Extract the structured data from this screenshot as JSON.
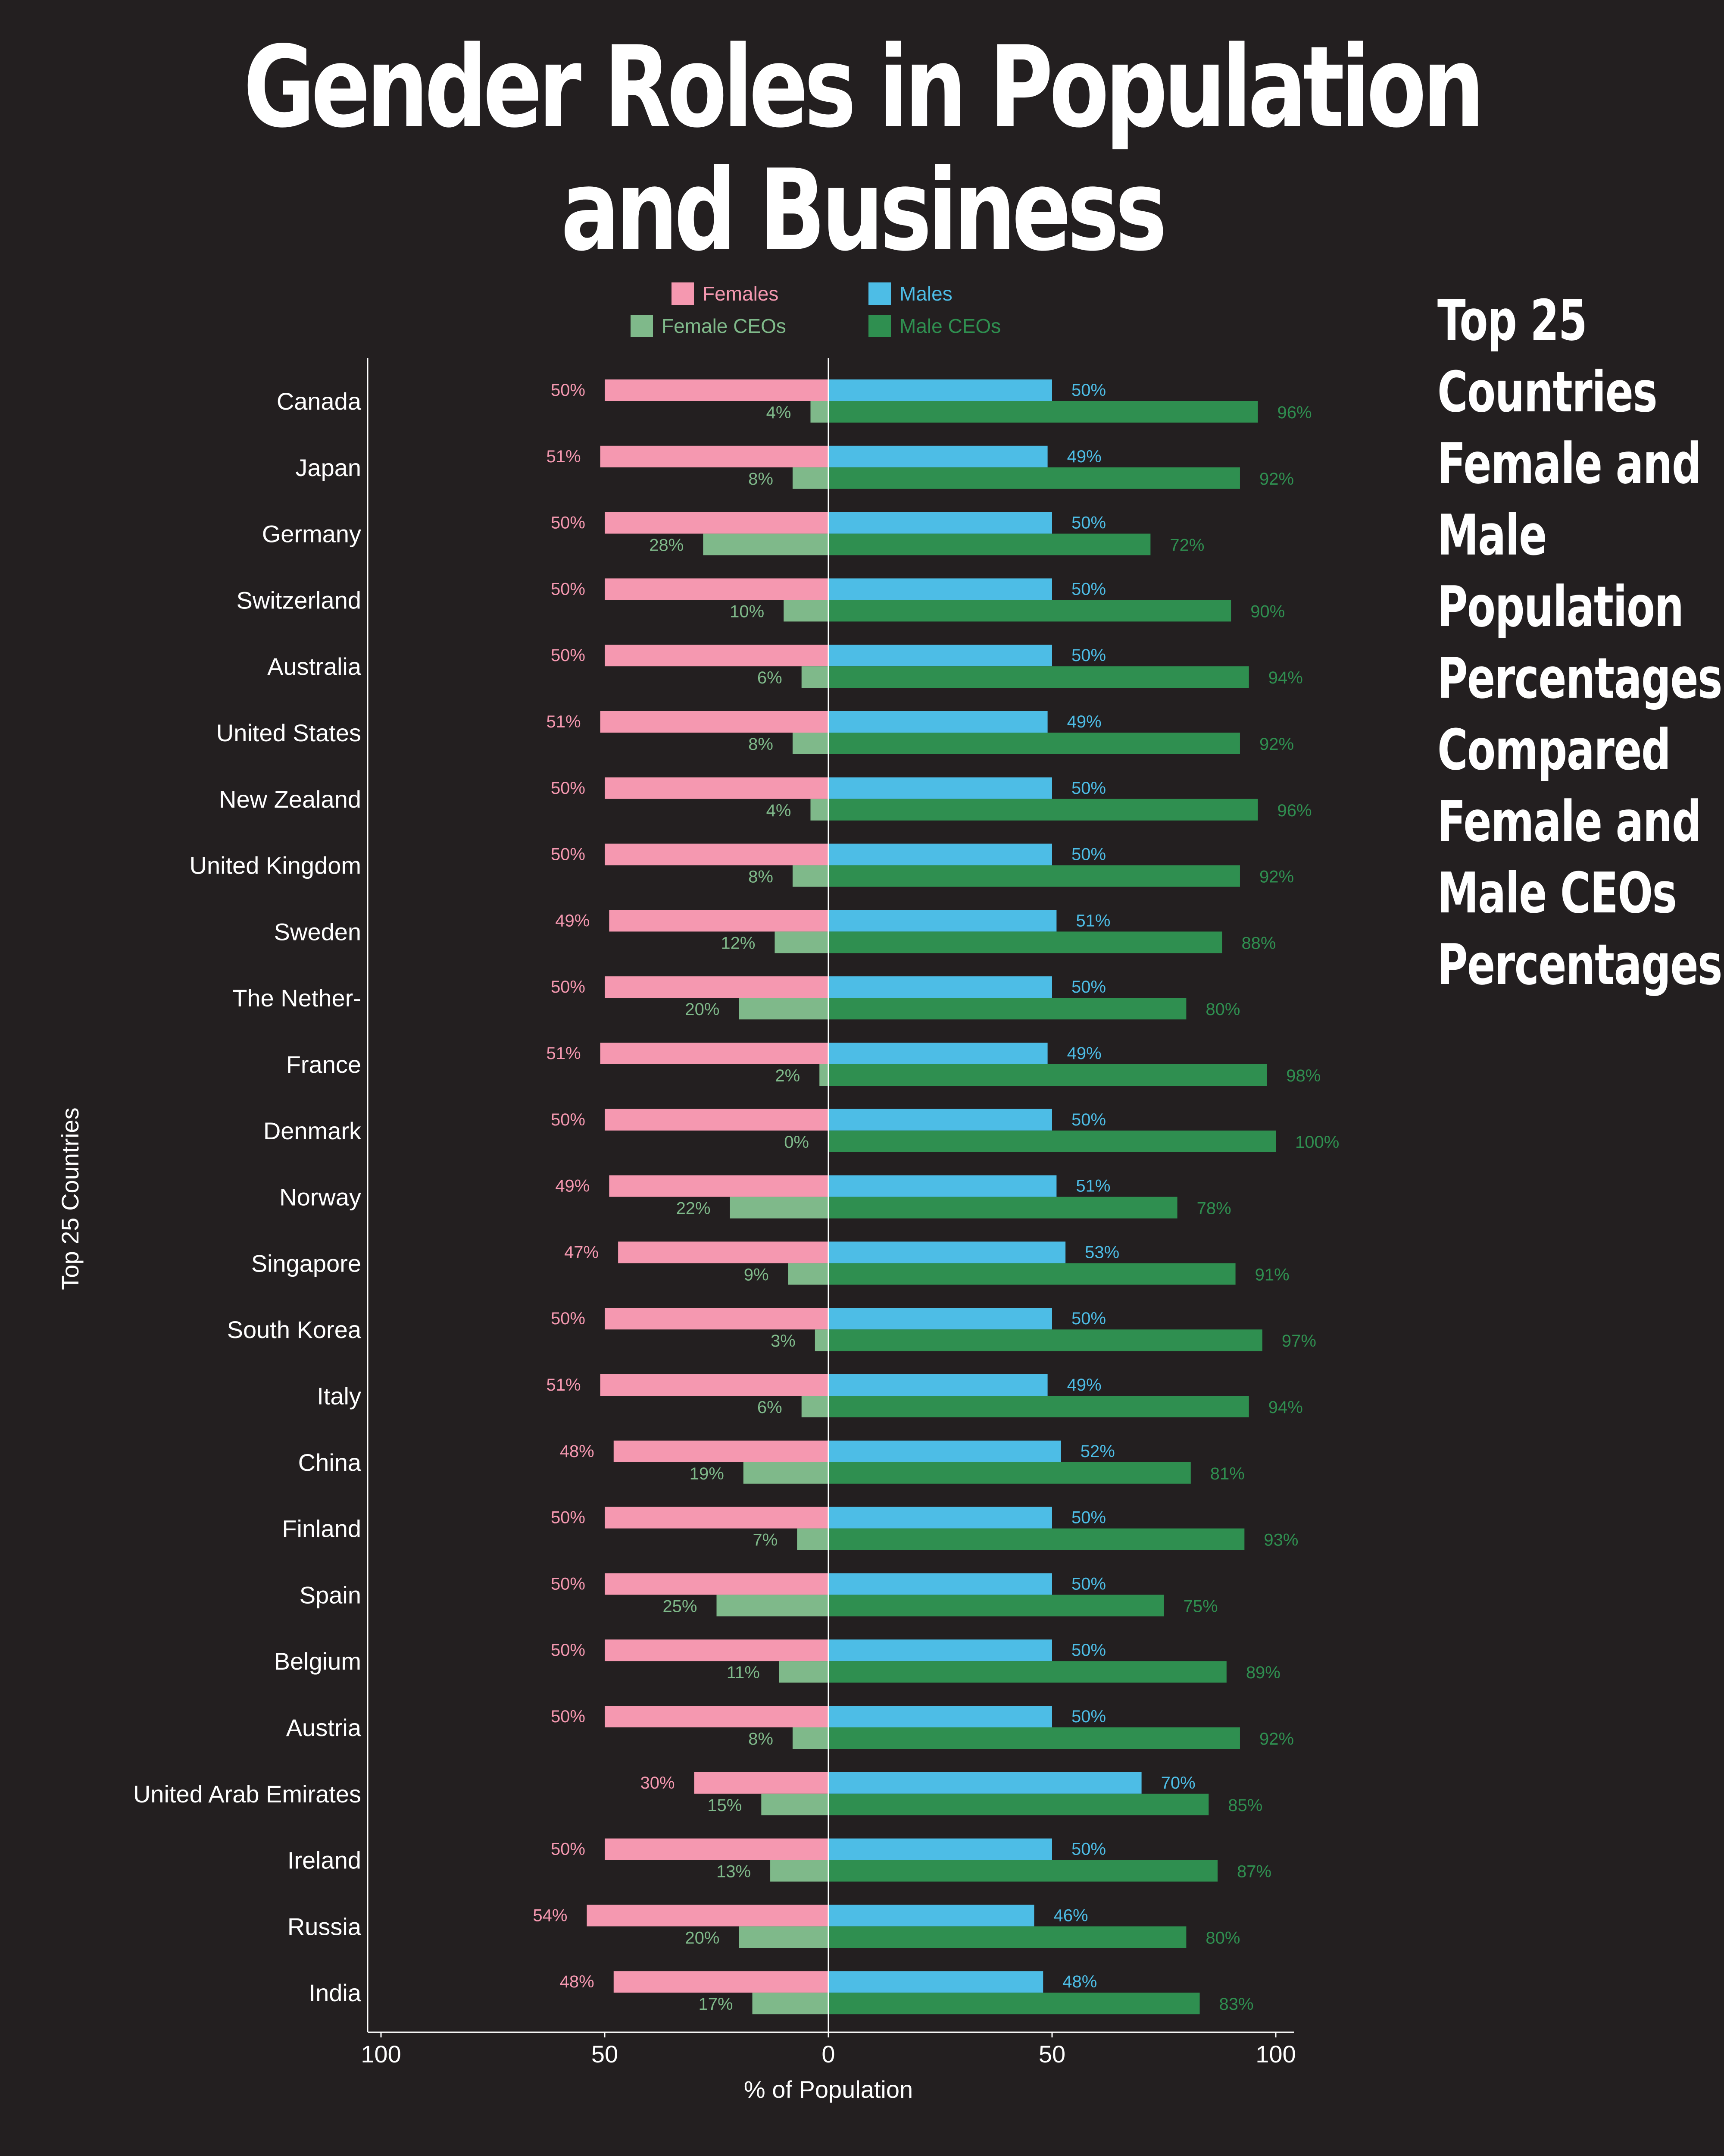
{
  "title": "Gender Roles in Population and Business",
  "side_title": [
    "Top 25",
    "Countries",
    "Female and",
    "Male",
    "Population",
    "Percentages",
    "Compared",
    "Female and",
    "Male CEOs",
    "Percentages"
  ],
  "colors": {
    "background": "#231f20",
    "females": "#f598b0",
    "males": "#4dbde6",
    "female_ceos": "#7fb98a",
    "male_ceos": "#2f8f50",
    "axis": "#ffffff"
  },
  "chart_data": {
    "type": "bar",
    "orientation": "horizontal-diverging",
    "categories": [
      "Canada",
      "Japan",
      "Germany",
      "Switzerland",
      "Australia",
      "United States",
      "New Zealand",
      "United Kingdom",
      "Sweden",
      "The Nether-",
      "France",
      "Denmark",
      "Norway",
      "Singapore",
      "South Korea",
      "Italy",
      "China",
      "Finland",
      "Spain",
      "Belgium",
      "Austria",
      "United Arab Emirates",
      "Ireland",
      "Russia",
      "India"
    ],
    "series": [
      {
        "name": "Females",
        "side": "left",
        "values": [
          50,
          51,
          50,
          50,
          50,
          51,
          50,
          50,
          49,
          50,
          51,
          50,
          49,
          47,
          50,
          51,
          48,
          50,
          50,
          50,
          50,
          30,
          50,
          54,
          48
        ]
      },
      {
        "name": "Males",
        "side": "right",
        "values": [
          50,
          49,
          50,
          50,
          50,
          49,
          50,
          50,
          51,
          50,
          49,
          50,
          51,
          53,
          50,
          49,
          52,
          50,
          50,
          50,
          50,
          70,
          50,
          46,
          48
        ]
      },
      {
        "name": "Female CEOs",
        "side": "left",
        "values": [
          4,
          8,
          28,
          10,
          6,
          8,
          4,
          8,
          12,
          20,
          2,
          0,
          22,
          9,
          3,
          6,
          19,
          7,
          25,
          11,
          8,
          15,
          13,
          20,
          17
        ]
      },
      {
        "name": "Male CEOs",
        "side": "right",
        "values": [
          96,
          92,
          72,
          90,
          94,
          92,
          96,
          92,
          88,
          80,
          98,
          100,
          78,
          91,
          97,
          94,
          81,
          93,
          75,
          89,
          92,
          85,
          87,
          80,
          83
        ]
      }
    ],
    "xlabel": "% of Population",
    "ylabel": "Top 25 Countries",
    "xticks": [
      {
        "value": -100,
        "label": "100"
      },
      {
        "value": -50,
        "label": "50"
      },
      {
        "value": 0,
        "label": "0"
      },
      {
        "value": 50,
        "label": "50"
      },
      {
        "value": 100,
        "label": "100"
      }
    ],
    "xlim": [
      -100,
      100
    ],
    "value_suffix": "%",
    "legend": {
      "position": "top",
      "order": [
        "Females",
        "Males",
        "Female CEOs",
        "Male CEOs"
      ]
    },
    "grid": false
  }
}
